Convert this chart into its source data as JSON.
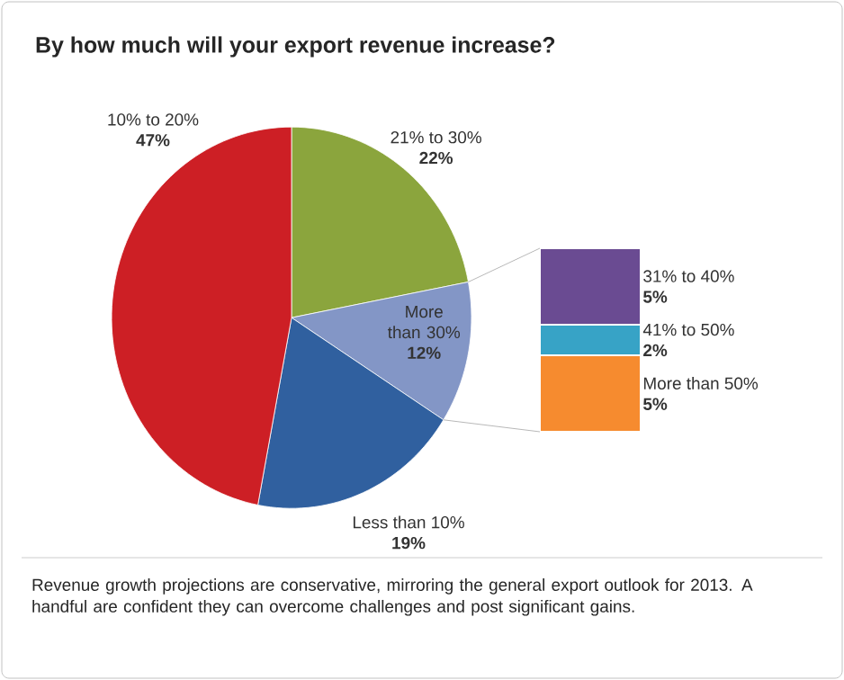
{
  "chart_data": [
    {
      "type": "pie",
      "title": "By how much will your export revenue increase?",
      "categories": [
        "21% to 30%",
        "More than 30%",
        "Less than 10%",
        "10% to 20%"
      ],
      "values": [
        22,
        12,
        19,
        47
      ],
      "value_labels": [
        "22%",
        "12%",
        "19%",
        "47%"
      ],
      "colors": [
        "#8ba53d",
        "#8396c6",
        "#30609f",
        "#cd1f25"
      ],
      "annotations": [
        "Revenue growth projections are conservative, mirroring the general export outlook for 2013. A handful are confident they can overcome challenges and post significant gains."
      ]
    },
    {
      "type": "bar",
      "stacked": true,
      "categories": [
        null
      ],
      "series": [
        {
          "name": "More than 50%",
          "color": "#f68b2f",
          "values": [
            5
          ],
          "value_labels": [
            "5%"
          ]
        },
        {
          "name": "41% to 50%",
          "color": "#37a3c6",
          "values": [
            2
          ],
          "value_labels": [
            "2%"
          ]
        },
        {
          "name": "31% to 40%",
          "color": "#6a4b92",
          "values": [
            5
          ],
          "value_labels": [
            "5%"
          ]
        }
      ]
    }
  ]
}
